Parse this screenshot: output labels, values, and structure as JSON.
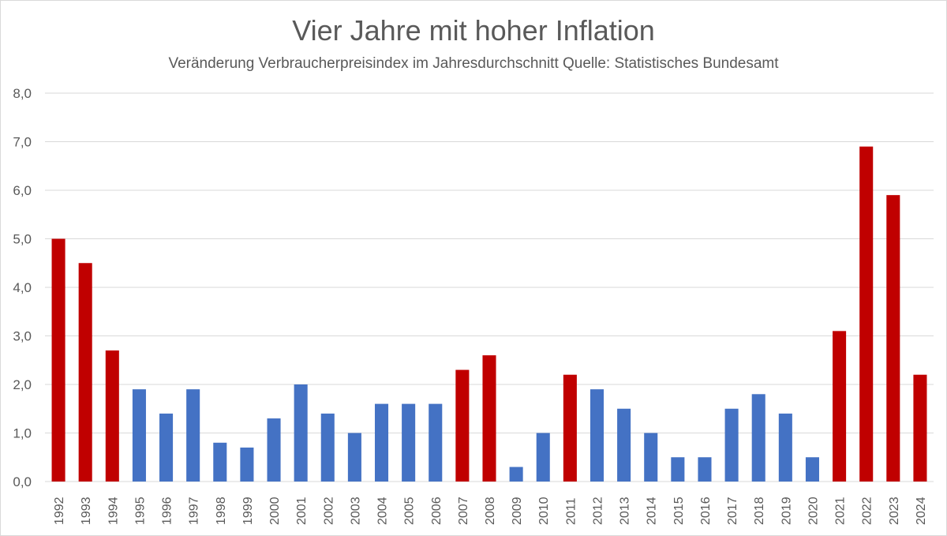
{
  "chart_data": {
    "type": "bar",
    "title": "Vier Jahre mit hoher Inflation",
    "subtitle": "Veränderung Verbraucherpreisindex im Jahresdurchschnitt Quelle: Statistisches Bundesamt",
    "xlabel": "",
    "ylabel": "",
    "ylim": [
      0,
      8
    ],
    "yticks": [
      "0,0",
      "1,0",
      "2,0",
      "3,0",
      "4,0",
      "5,0",
      "6,0",
      "7,0",
      "8,0"
    ],
    "grid": true,
    "legend": "none",
    "colors": {
      "high": "#c00000",
      "normal": "#4472c4",
      "grid": "#d9d9d9",
      "axis_text": "#595959"
    },
    "categories": [
      "1992",
      "1993",
      "1994",
      "1995",
      "1996",
      "1997",
      "1998",
      "1999",
      "2000",
      "2001",
      "2002",
      "2003",
      "2004",
      "2005",
      "2006",
      "2007",
      "2008",
      "2009",
      "2010",
      "2011",
      "2012",
      "2013",
      "2014",
      "2015",
      "2016",
      "2017",
      "2018",
      "2019",
      "2020",
      "2021",
      "2022",
      "2023",
      "2024"
    ],
    "values": [
      5.0,
      4.5,
      2.7,
      1.9,
      1.4,
      1.9,
      0.8,
      0.7,
      1.3,
      2.0,
      1.4,
      1.0,
      1.6,
      1.6,
      1.6,
      2.3,
      2.6,
      0.3,
      1.0,
      2.2,
      1.9,
      1.5,
      1.0,
      0.5,
      0.5,
      1.5,
      1.8,
      1.4,
      0.5,
      3.1,
      6.9,
      5.9,
      2.2
    ],
    "highlight": [
      true,
      true,
      true,
      false,
      false,
      false,
      false,
      false,
      false,
      false,
      false,
      false,
      false,
      false,
      false,
      true,
      true,
      false,
      false,
      true,
      false,
      false,
      false,
      false,
      false,
      false,
      false,
      false,
      false,
      true,
      true,
      true,
      true
    ]
  }
}
